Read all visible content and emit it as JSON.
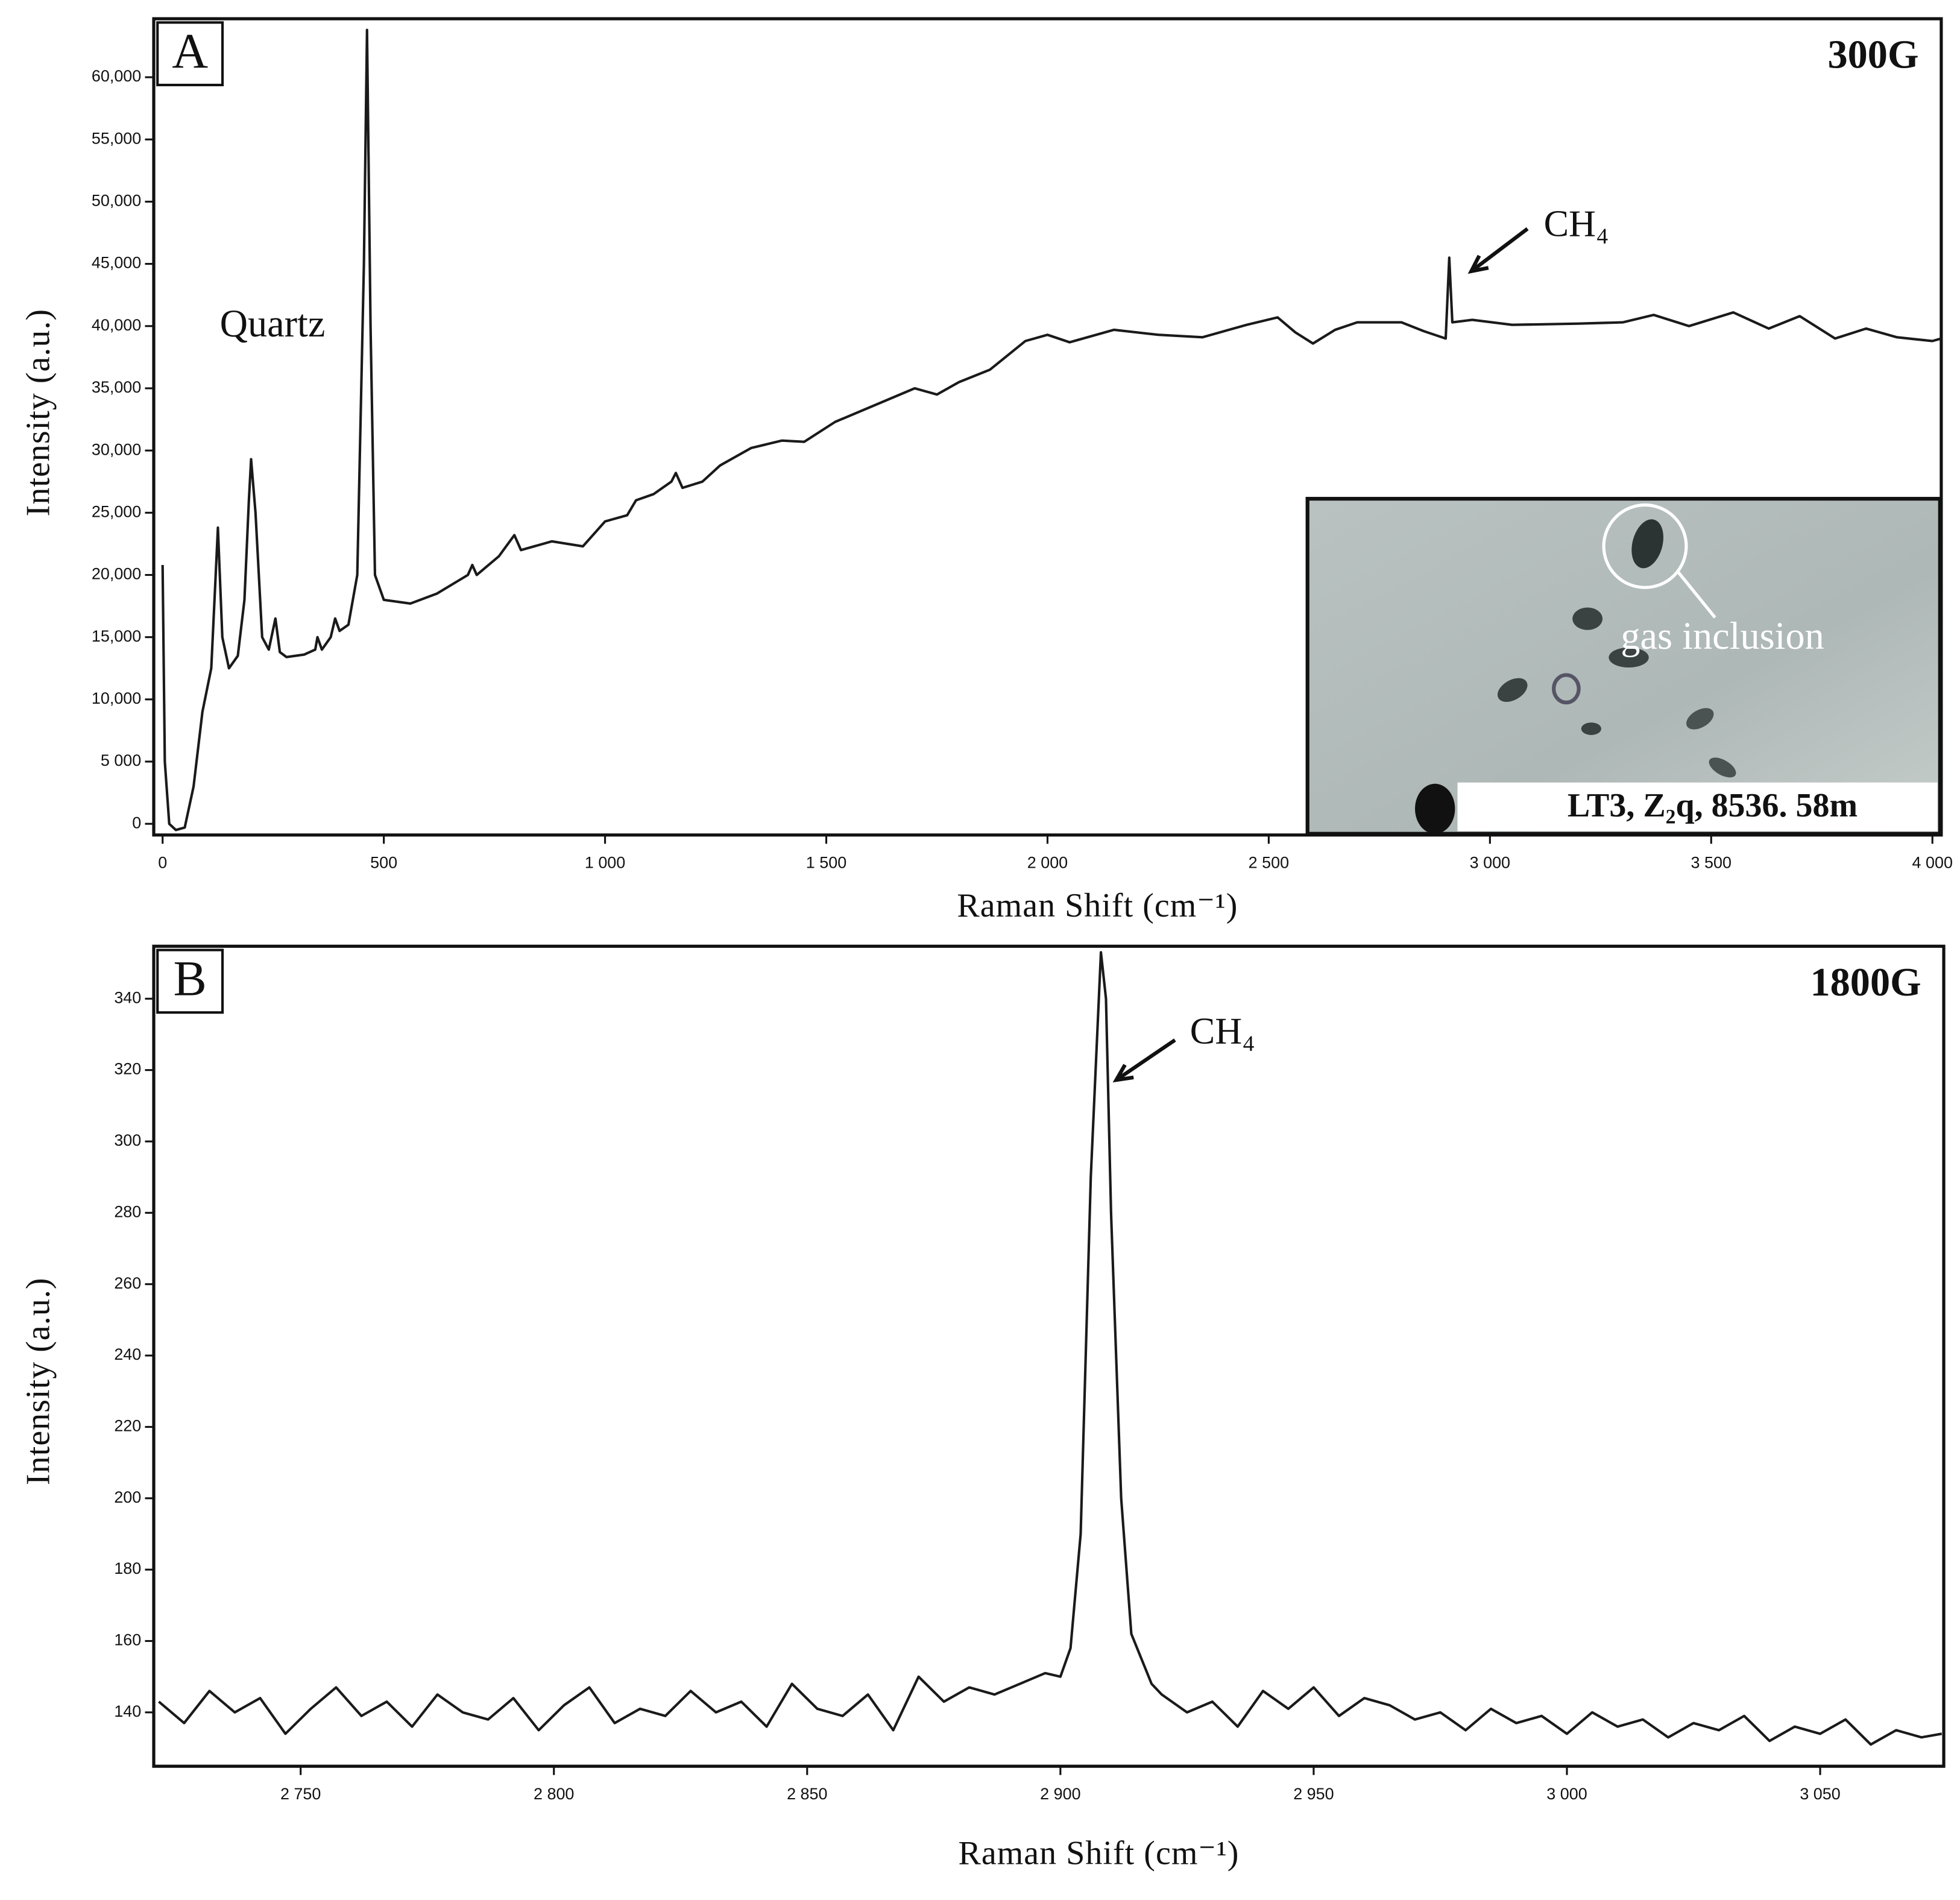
{
  "chart_data": [
    {
      "type": "line",
      "panel_label": "A",
      "grating": "300G",
      "xlabel": "Raman Shift (cm⁻¹)",
      "ylabel": "Intensity (a.u.)",
      "annotations": [
        "Quartz",
        "CH₄"
      ],
      "inset_labels": [
        "gas inclusion",
        "LT3, Z₂q, 8536. 58m"
      ],
      "xlim": [
        -20,
        4020
      ],
      "ylim": [
        -900,
        64700
      ],
      "xticks": [
        0,
        500,
        {
          "value": 1000,
          "label": "1 000"
        },
        {
          "value": 1500,
          "label": "1 500"
        },
        {
          "value": 2000,
          "label": "2 000"
        },
        {
          "value": 2500,
          "label": "2 500"
        },
        {
          "value": 3000,
          "label": "3 000"
        },
        {
          "value": 3500,
          "label": "3 500"
        },
        {
          "value": 4000,
          "label": "4 000"
        }
      ],
      "yticks": [
        0,
        {
          "value": 5000,
          "label": "5 000"
        },
        {
          "value": 10000,
          "label": "10,000"
        },
        {
          "value": 15000,
          "label": "15,000"
        },
        {
          "value": 20000,
          "label": "20,000"
        },
        {
          "value": 25000,
          "label": "25,000"
        },
        {
          "value": 30000,
          "label": "30,000"
        },
        {
          "value": 35000,
          "label": "35,000"
        },
        {
          "value": 40000,
          "label": "40,000"
        },
        {
          "value": 45000,
          "label": "45,000"
        },
        {
          "value": 50000,
          "label": "50,000"
        },
        {
          "value": 55000,
          "label": "55,000"
        },
        {
          "value": 60000,
          "label": "60,000"
        }
      ],
      "color": "#1a1a1a",
      "x": [
        0,
        5,
        15,
        30,
        50,
        70,
        90,
        110,
        120,
        125,
        135,
        150,
        170,
        185,
        195,
        200,
        210,
        225,
        240,
        255,
        265,
        280,
        320,
        345,
        350,
        360,
        380,
        390,
        400,
        420,
        440,
        455,
        462,
        470,
        480,
        500,
        560,
        620,
        690,
        700,
        710,
        760,
        795,
        810,
        880,
        950,
        1000,
        1050,
        1070,
        1110,
        1150,
        1160,
        1175,
        1220,
        1260,
        1330,
        1400,
        1450,
        1520,
        1600,
        1700,
        1750,
        1800,
        1870,
        1950,
        2000,
        2050,
        2150,
        2250,
        2350,
        2450,
        2520,
        2560,
        2600,
        2650,
        2700,
        2800,
        2850,
        2900,
        2908,
        2915,
        2960,
        3050,
        3200,
        3300,
        3370,
        3450,
        3550,
        3630,
        3700,
        3780,
        3850,
        3920,
        4000,
        4020
      ],
      "values": [
        20800,
        5000,
        0,
        -500,
        -300,
        3000,
        9000,
        12500,
        20000,
        23800,
        15000,
        12500,
        13500,
        18000,
        26000,
        29300,
        25000,
        15000,
        14000,
        16500,
        13800,
        13400,
        13600,
        14000,
        15000,
        14000,
        15000,
        16500,
        15500,
        16000,
        20000,
        45000,
        63800,
        40000,
        20000,
        18000,
        17700,
        18500,
        20000,
        20800,
        20000,
        21500,
        23200,
        22000,
        22700,
        22300,
        24300,
        24800,
        26000,
        26500,
        27500,
        28200,
        27000,
        27500,
        28800,
        30200,
        30800,
        30700,
        32300,
        33500,
        35000,
        34500,
        35500,
        36500,
        38800,
        39300,
        38700,
        39700,
        39300,
        39100,
        40100,
        40700,
        39500,
        38600,
        39700,
        40300,
        40300,
        39600,
        39000,
        45500,
        40300,
        40500,
        40100,
        40200,
        40300,
        40900,
        40000,
        41100,
        39800,
        40800,
        39000,
        39800,
        39100,
        38800,
        39000
      ]
    },
    {
      "type": "line",
      "panel_label": "B",
      "grating": "1800G",
      "xlabel": "Raman Shift (cm⁻¹)",
      "ylabel": "Intensity (a.u.)",
      "annotations": [
        "CH₄"
      ],
      "xlim": [
        2721,
        3074.4
      ],
      "ylim": [
        124.9,
        354.7
      ],
      "xticks": [
        {
          "value": 2750,
          "label": "2 750"
        },
        {
          "value": 2800,
          "label": "2 800"
        },
        {
          "value": 2850,
          "label": "2 850"
        },
        {
          "value": 2900,
          "label": "2 900"
        },
        {
          "value": 2950,
          "label": "2 950"
        },
        {
          "value": 3000,
          "label": "3 000"
        },
        {
          "value": 3050,
          "label": "3 050"
        }
      ],
      "yticks": [
        140,
        160,
        180,
        200,
        220,
        240,
        260,
        280,
        300,
        320,
        340
      ],
      "color": "#1a1a1a",
      "x": [
        2722,
        2727,
        2732,
        2737,
        2742,
        2747,
        2752,
        2757,
        2762,
        2767,
        2772,
        2777,
        2782,
        2787,
        2792,
        2797,
        2802,
        2807,
        2812,
        2817,
        2822,
        2827,
        2832,
        2837,
        2842,
        2847,
        2852,
        2857,
        2862,
        2867,
        2872,
        2877,
        2882,
        2887,
        2892,
        2897,
        2900,
        2902,
        2904,
        2906,
        2908,
        2909,
        2910,
        2912,
        2914,
        2916,
        2918,
        2920,
        2925,
        2930,
        2935,
        2940,
        2945,
        2950,
        2955,
        2960,
        2965,
        2970,
        2975,
        2980,
        2985,
        2990,
        2995,
        3000,
        3005,
        3010,
        3015,
        3020,
        3025,
        3030,
        3035,
        3040,
        3045,
        3050,
        3055,
        3060,
        3065,
        3070,
        3074
      ],
      "values": [
        143,
        137,
        146,
        140,
        144,
        134,
        141,
        147,
        139,
        143,
        136,
        145,
        140,
        138,
        144,
        135,
        142,
        147,
        137,
        141,
        139,
        146,
        140,
        143,
        136,
        148,
        141,
        139,
        145,
        135,
        150,
        143,
        147,
        145,
        148,
        151,
        150,
        158,
        190,
        290,
        353,
        340,
        280,
        200,
        162,
        155,
        148,
        145,
        140,
        143,
        136,
        146,
        141,
        147,
        139,
        144,
        142,
        138,
        140,
        135,
        141,
        137,
        139,
        134,
        140,
        136,
        138,
        133,
        137,
        135,
        139,
        132,
        136,
        134,
        138,
        131,
        135,
        133,
        134
      ]
    }
  ]
}
